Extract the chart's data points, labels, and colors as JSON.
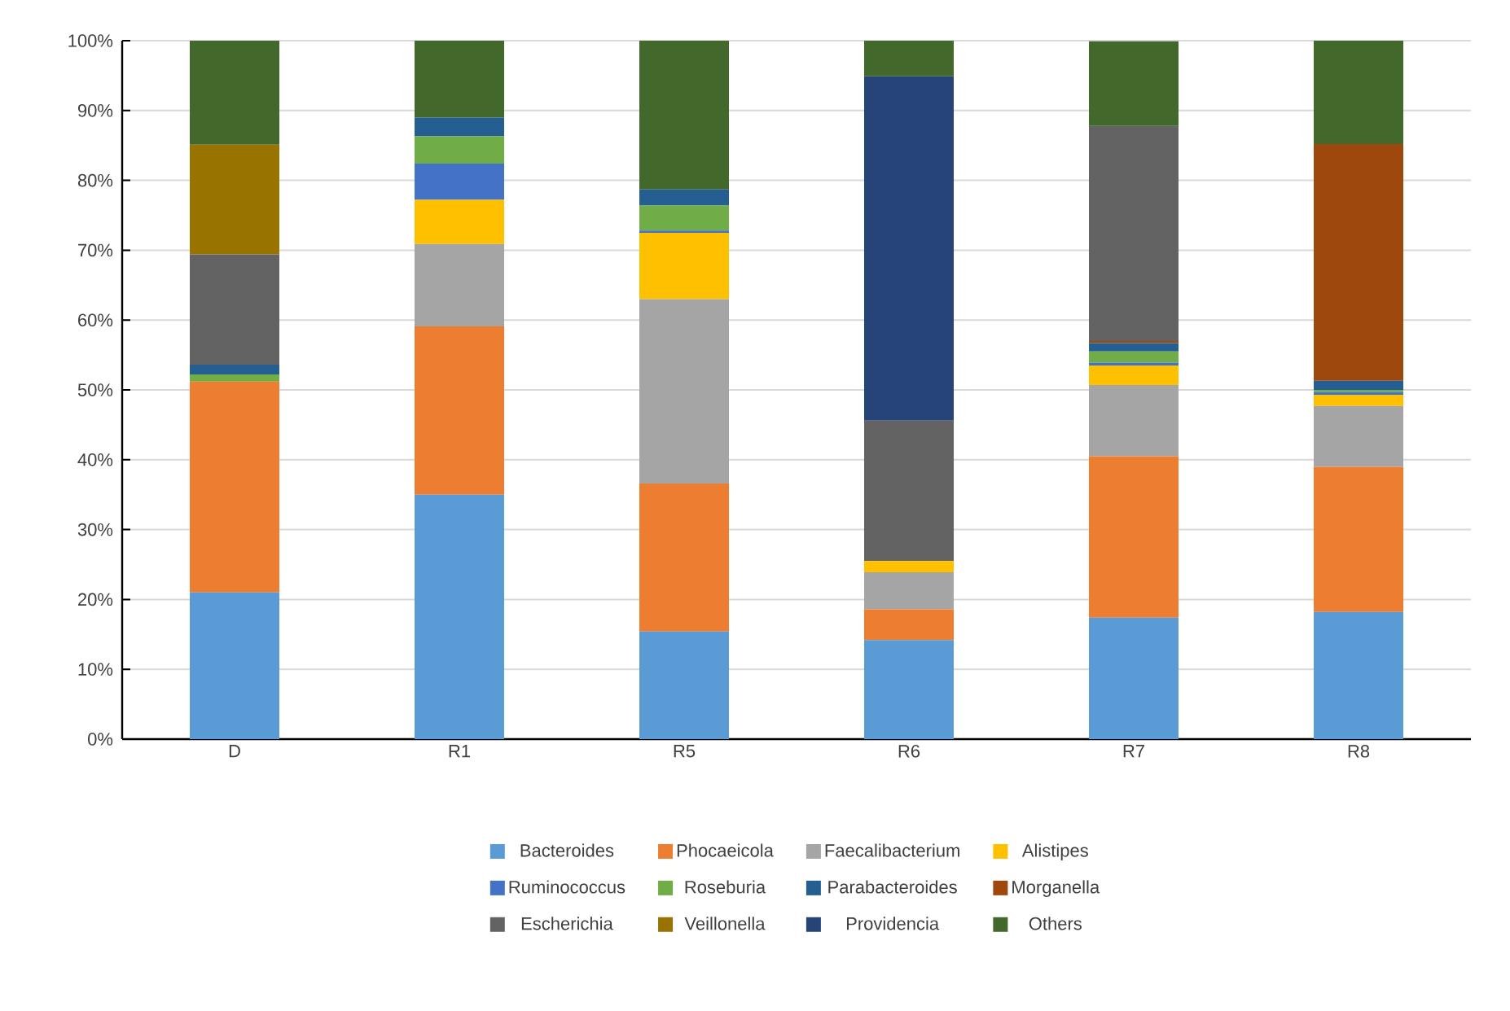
{
  "chart_data": {
    "type": "bar",
    "stacked": true,
    "categories": [
      "D",
      "R1",
      "R5",
      "R6",
      "R7",
      "R8"
    ],
    "series": [
      {
        "name": "Bacteroides",
        "color": "#5b9bd5",
        "values": [
          21.0,
          35.0,
          15.4,
          14.2,
          17.4,
          18.2
        ]
      },
      {
        "name": "Phocaeicola",
        "color": "#ed7d31",
        "values": [
          30.2,
          24.1,
          21.2,
          4.4,
          23.1,
          20.8
        ]
      },
      {
        "name": "Faecalibacterium",
        "color": "#a5a5a5",
        "values": [
          0,
          11.8,
          26.4,
          5.3,
          10.2,
          8.7
        ]
      },
      {
        "name": "Alistipes",
        "color": "#ffc000",
        "values": [
          0,
          6.3,
          9.5,
          1.6,
          2.8,
          1.6
        ]
      },
      {
        "name": "Ruminococcus",
        "color": "#4472c4",
        "values": [
          0,
          5.2,
          0.3,
          0,
          0.4,
          0.4
        ]
      },
      {
        "name": "Roseburia",
        "color": "#70ad47",
        "values": [
          1.0,
          3.9,
          3.6,
          0,
          1.6,
          0.3
        ]
      },
      {
        "name": "Parabacteroides",
        "color": "#255e91",
        "values": [
          1.4,
          2.7,
          2.3,
          0,
          1.2,
          1.3
        ]
      },
      {
        "name": "Morganella",
        "color": "#9e480e",
        "values": [
          0,
          0,
          0,
          0,
          0.3,
          33.9
        ]
      },
      {
        "name": "Escherichia",
        "color": "#636363",
        "values": [
          15.8,
          0,
          0,
          20.1,
          30.8,
          0
        ]
      },
      {
        "name": "Veillonella",
        "color": "#997300",
        "values": [
          15.7,
          0,
          0,
          0,
          0,
          0
        ]
      },
      {
        "name": "Providencia",
        "color": "#264478",
        "values": [
          0,
          0,
          0,
          49.3,
          0,
          0
        ]
      },
      {
        "name": "Others",
        "color": "#43682b",
        "values": [
          14.9,
          11.0,
          21.3,
          5.1,
          12.1,
          14.8
        ]
      }
    ],
    "ylim": [
      0,
      100
    ],
    "yticks": [
      {
        "value": 0,
        "label": "0%"
      },
      {
        "value": 10,
        "label": "10%"
      },
      {
        "value": 20,
        "label": "20%"
      },
      {
        "value": 30,
        "label": "30%"
      },
      {
        "value": 40,
        "label": "40%"
      },
      {
        "value": 50,
        "label": "50%"
      },
      {
        "value": 60,
        "label": "60%"
      },
      {
        "value": 70,
        "label": "70%"
      },
      {
        "value": 80,
        "label": "80%"
      },
      {
        "value": 90,
        "label": "90%"
      },
      {
        "value": 100,
        "label": "100%"
      }
    ],
    "grid": "y",
    "legend": "bottom"
  }
}
